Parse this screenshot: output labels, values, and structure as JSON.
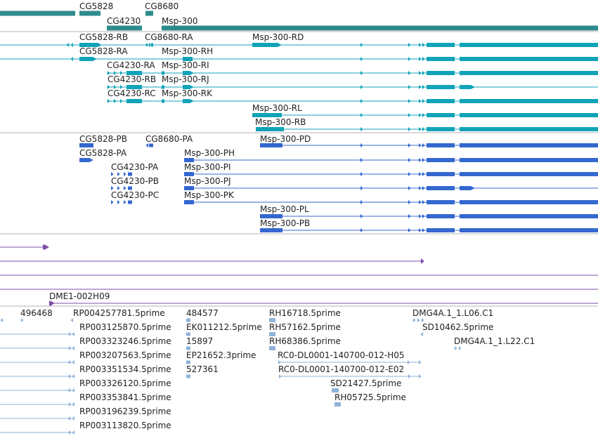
{
  "colors": {
    "gene": "#2e8b8c",
    "transcript_rna": "#11a3b8",
    "protein": "#3468cf",
    "insertion": "#7b4fa8",
    "est": "#8fb3d9",
    "divider": "#b3b3b3"
  },
  "genes": {
    "labels": [
      "CG5828",
      "CG8680",
      "CG4230",
      "Msp-300"
    ]
  },
  "transcripts": {
    "labels": [
      "CG5828-RB",
      "CG8680-RA",
      "Msp-300-RD",
      "CG5828-RA",
      "Msp-300-RH",
      "CG4230-RA",
      "Msp-300-RI",
      "CG4230-RB",
      "Msp-300-RJ",
      "CG4230-RC",
      "Msp-300-RK",
      "Msp-300-RL",
      "Msp-300-RB"
    ]
  },
  "proteins": {
    "labels": [
      "CG5828-PB",
      "CG8680-PA",
      "Msp-300-PD",
      "CG5828-PA",
      "Msp-300-PH",
      "CG4230-PA",
      "Msp-300-PI",
      "CG4230-PB",
      "Msp-300-PJ",
      "CG4230-PC",
      "Msp-300-PK",
      "Msp-300-PL",
      "Msp-300-PB"
    ]
  },
  "insertions": {
    "labels": [
      "DME1-002H09"
    ]
  },
  "ests": {
    "labels": [
      "496468",
      "RP004257781.5prime",
      "484577",
      "RH16718.5prime",
      "DMG4A.1_1.L06.C1",
      "RP003125870.5prime",
      "EK011212.5prime",
      "RH57162.5prime",
      "SD10462.5prime",
      "RP003323246.5prime",
      "15897",
      "RH68386.5prime",
      "DMG4A.1_1.L22.C1",
      "RP003207563.5prime",
      "EP21652.3prime",
      "RC0-DL0001-140700-012-H05",
      "RP003351534.5prime",
      "527361",
      "RC0-DL0001-140700-012-E02",
      "RP003326120.5prime",
      "SD21427.5prime",
      "RP003353841.5prime",
      "RH05725.5prime",
      "RP003196239.5prime",
      "RP003113820.5prime"
    ]
  }
}
